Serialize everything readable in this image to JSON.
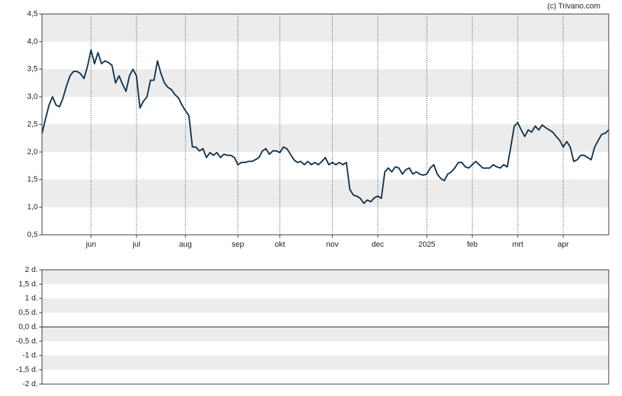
{
  "source": "(c) Trivano.com",
  "chart_data": [
    {
      "type": "line",
      "series": [
        {
          "color": "#0f3552",
          "values": [
            2.34,
            2.6,
            2.85,
            3.0,
            2.85,
            2.82,
            2.98,
            3.2,
            3.38,
            3.46,
            3.46,
            3.42,
            3.33,
            3.55,
            3.85,
            3.6,
            3.8,
            3.6,
            3.65,
            3.62,
            3.57,
            3.25,
            3.38,
            3.23,
            3.1,
            3.38,
            3.5,
            3.38,
            2.8,
            2.92,
            3.0,
            3.3,
            3.3,
            3.65,
            3.42,
            3.25,
            3.17,
            3.13,
            3.04,
            2.98,
            2.85,
            2.75,
            2.66,
            2.09,
            2.09,
            2.02,
            2.06,
            1.9,
            1.99,
            1.94,
            1.99,
            1.9,
            1.96,
            1.94,
            1.94,
            1.9,
            1.77,
            1.81,
            1.81,
            1.83,
            1.83,
            1.86,
            1.9,
            2.02,
            2.06,
            1.96,
            2.02,
            2.02,
            1.99,
            2.09,
            2.06,
            1.96,
            1.86,
            1.81,
            1.83,
            1.77,
            1.83,
            1.77,
            1.81,
            1.77,
            1.83,
            1.9,
            1.77,
            1.81,
            1.77,
            1.81,
            1.77,
            1.81,
            1.32,
            1.22,
            1.2,
            1.16,
            1.07,
            1.13,
            1.1,
            1.17,
            1.2,
            1.16,
            1.64,
            1.71,
            1.64,
            1.73,
            1.71,
            1.6,
            1.68,
            1.71,
            1.6,
            1.64,
            1.6,
            1.58,
            1.6,
            1.71,
            1.77,
            1.6,
            1.52,
            1.48,
            1.6,
            1.64,
            1.71,
            1.81,
            1.81,
            1.73,
            1.71,
            1.77,
            1.83,
            1.77,
            1.71,
            1.71,
            1.71,
            1.77,
            1.73,
            1.71,
            1.77,
            1.73,
            2.09,
            2.47,
            2.53,
            2.4,
            2.28,
            2.4,
            2.36,
            2.47,
            2.4,
            2.49,
            2.44,
            2.4,
            2.36,
            2.28,
            2.21,
            2.09,
            2.19,
            2.09,
            1.83,
            1.86,
            1.94,
            1.94,
            1.9,
            1.86,
            2.09,
            2.21,
            2.32,
            2.34,
            2.4
          ]
        }
      ],
      "xlim": [
        0,
        162
      ],
      "xticks": [
        {
          "value": 14,
          "label": "jun"
        },
        {
          "value": 27,
          "label": "jul"
        },
        {
          "value": 41,
          "label": "aug"
        },
        {
          "value": 56,
          "label": "sep"
        },
        {
          "value": 68,
          "label": "okt"
        },
        {
          "value": 83,
          "label": "nov"
        },
        {
          "value": 96,
          "label": "dec"
        },
        {
          "value": 110,
          "label": "2025"
        },
        {
          "value": 123,
          "label": "feb"
        },
        {
          "value": 136,
          "label": "mrt"
        },
        {
          "value": 149,
          "label": "apr"
        }
      ],
      "ylim": [
        0.5,
        4.5
      ],
      "yticks": [
        {
          "value": 0.5,
          "label": "0,5"
        },
        {
          "value": 1,
          "label": "1,0"
        },
        {
          "value": 1.5,
          "label": "1,5"
        },
        {
          "value": 2,
          "label": "2,0"
        },
        {
          "value": 2.5,
          "label": "2,5"
        },
        {
          "value": 3,
          "label": "3,0"
        },
        {
          "value": 3.5,
          "label": "3,5"
        },
        {
          "value": 4,
          "label": "4,0"
        },
        {
          "value": 4.5,
          "label": "4,5"
        }
      ],
      "grid": "banded"
    },
    {
      "type": "line",
      "series": [],
      "ylim": [
        -2,
        2
      ],
      "yticks": [
        {
          "value": -2,
          "label": "-2 d."
        },
        {
          "value": -1.5,
          "label": "-1,5 d."
        },
        {
          "value": -1,
          "label": "-1 d."
        },
        {
          "value": -0.5,
          "label": "-0,5 d."
        },
        {
          "value": 0,
          "label": "0,0 d."
        },
        {
          "value": 0.5,
          "label": "0,5 d."
        },
        {
          "value": 1,
          "label": "1 d."
        },
        {
          "value": 1.5,
          "label": "1,5 d."
        },
        {
          "value": 2,
          "label": "2 d."
        }
      ],
      "grid": "banded"
    }
  ]
}
